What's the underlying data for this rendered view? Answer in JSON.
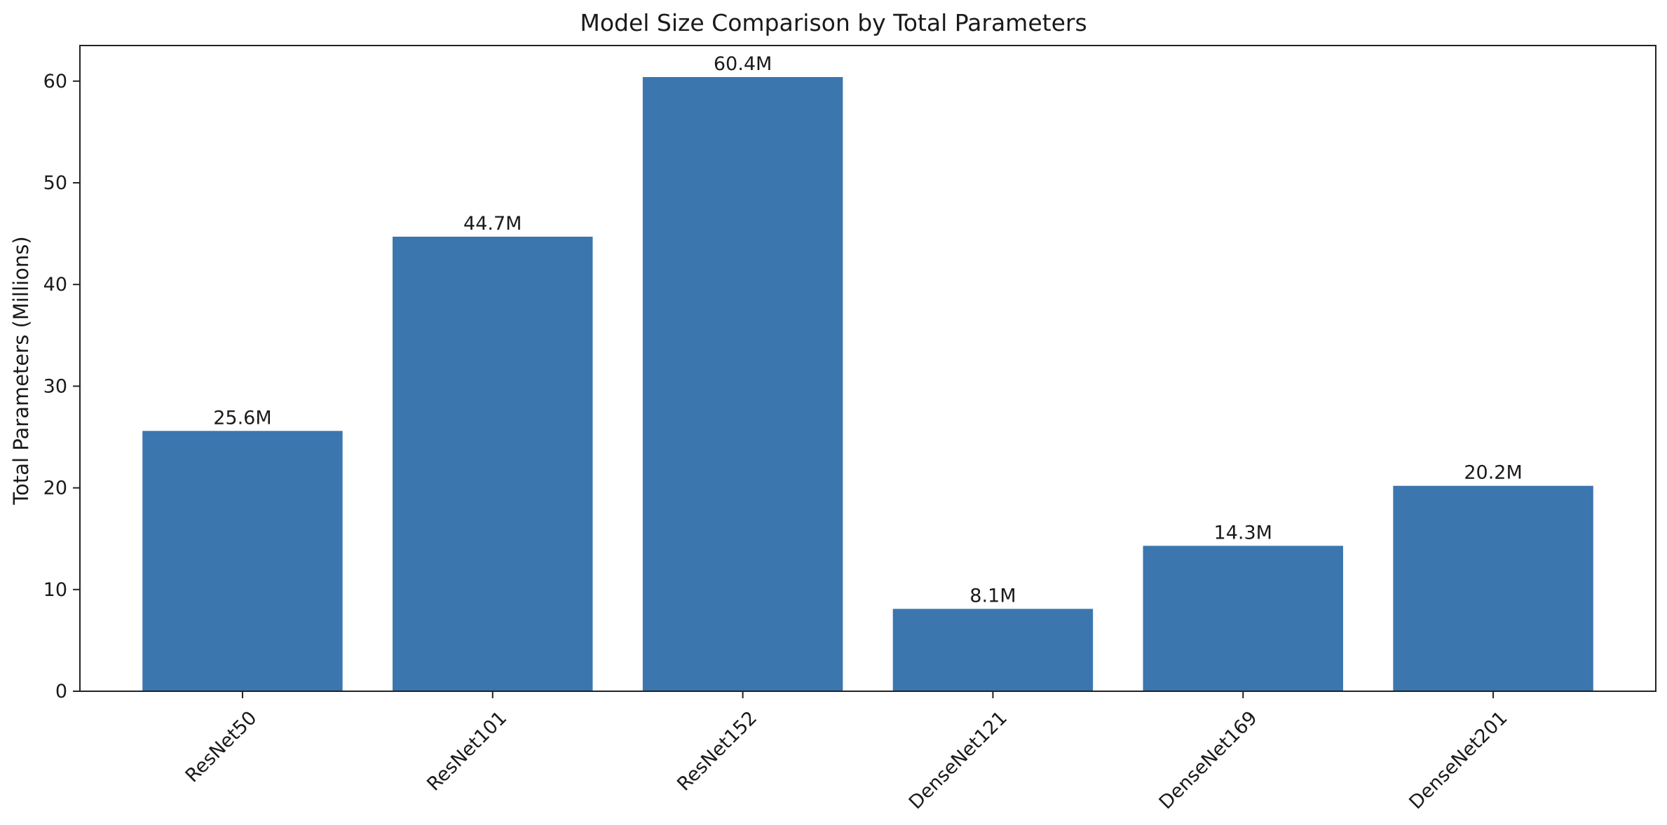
{
  "chart_data": {
    "type": "bar",
    "title": "Model Size Comparison by Total Parameters",
    "xlabel": "",
    "ylabel": "Total Parameters (Millions)",
    "categories": [
      "ResNet50",
      "ResNet101",
      "ResNet152",
      "DenseNet121",
      "DenseNet169",
      "DenseNet201"
    ],
    "values": [
      25.6,
      44.7,
      60.4,
      8.1,
      14.3,
      20.2
    ],
    "data_labels": [
      "25.6M",
      "44.7M",
      "60.4M",
      "8.1M",
      "14.3M",
      "20.2M"
    ],
    "ylim": [
      0,
      63.5
    ],
    "yticks": [
      0,
      10,
      20,
      30,
      40,
      50,
      60
    ],
    "ytick_labels": [
      "0",
      "10",
      "20",
      "30",
      "40",
      "50",
      "60"
    ],
    "xtick_rotation_deg": 45,
    "grid": false,
    "legend": "none",
    "bar_color": "#3b76ae"
  }
}
